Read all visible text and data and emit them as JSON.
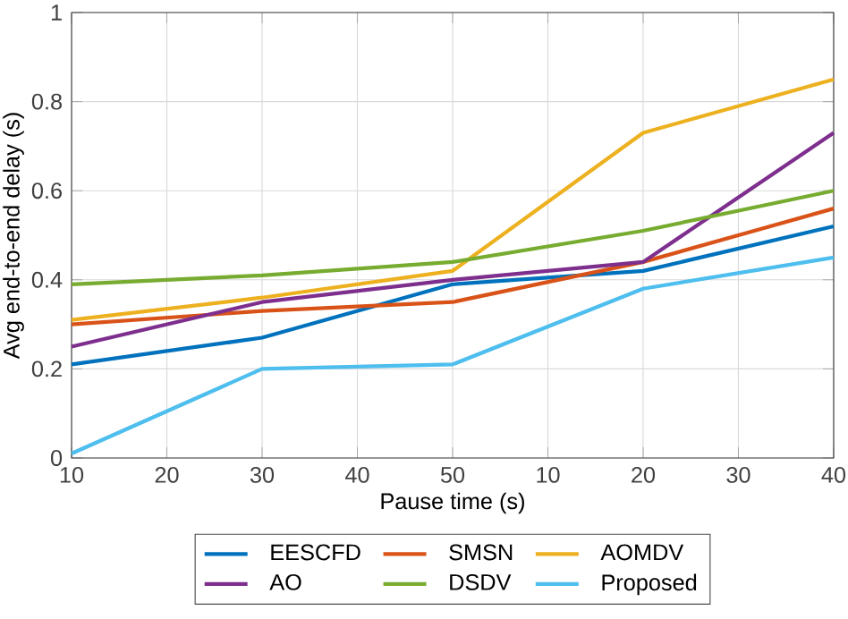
{
  "chart_data": {
    "type": "line",
    "xlabel": "Pause time (s)",
    "ylabel": "Avg end-to-end delay (s)",
    "categories": [
      "10",
      "20",
      "30",
      "40",
      "50",
      "10",
      "20",
      "30",
      "40"
    ],
    "ylim": [
      0,
      1
    ],
    "yticks": [
      0,
      0.2,
      0.4,
      0.6,
      0.8,
      1
    ],
    "grid": true,
    "legend": "bottom",
    "line_style": "solid",
    "series": [
      {
        "name": "EESCFD",
        "color": "#0072bd",
        "values": [
          0.21,
          null,
          0.27,
          null,
          0.39,
          null,
          0.42,
          null,
          0.52
        ]
      },
      {
        "name": "SMSN",
        "color": "#d95319",
        "values": [
          0.3,
          null,
          0.33,
          null,
          0.35,
          null,
          0.44,
          null,
          0.56
        ]
      },
      {
        "name": "AOMDV",
        "color": "#edb120",
        "values": [
          0.31,
          null,
          0.36,
          null,
          0.42,
          null,
          0.73,
          null,
          0.85
        ]
      },
      {
        "name": "AO",
        "color": "#7e2f8e",
        "values": [
          0.25,
          null,
          0.35,
          null,
          0.4,
          null,
          0.44,
          null,
          0.73
        ]
      },
      {
        "name": "DSDV",
        "color": "#77ac30",
        "values": [
          0.39,
          null,
          0.41,
          null,
          0.44,
          null,
          0.51,
          null,
          0.6
        ]
      },
      {
        "name": "Proposed",
        "color": "#4dbeee",
        "values": [
          0.01,
          null,
          0.2,
          null,
          0.21,
          null,
          0.38,
          null,
          0.45
        ]
      }
    ]
  }
}
